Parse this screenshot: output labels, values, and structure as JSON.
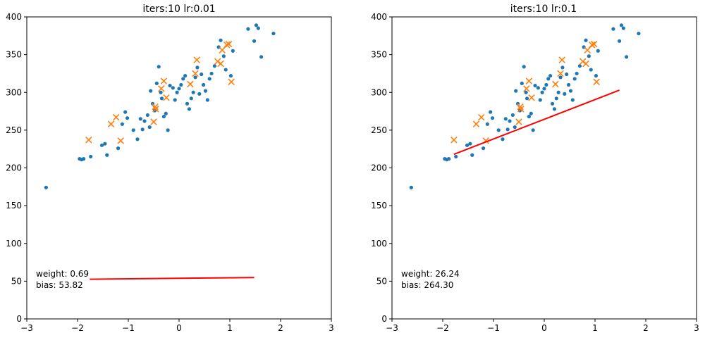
{
  "colors": {
    "train_points": "#1f77b4",
    "test_points": "#ff7f0e",
    "fit_line": "#ff0000",
    "axes": "#000000",
    "background": "#ffffff"
  },
  "chart_data": [
    {
      "type": "scatter",
      "title": "iters:10 lr:0.01",
      "xlabel": "",
      "ylabel": "",
      "xlim": [
        -3,
        3
      ],
      "ylim": [
        0,
        400
      ],
      "xticks": [
        "−3",
        "−2",
        "−1",
        "0",
        "1",
        "2",
        "3"
      ],
      "yticks": [
        "0",
        "50",
        "100",
        "150",
        "200",
        "250",
        "300",
        "350",
        "400"
      ],
      "grid": false,
      "annotation": {
        "weight": "weight: 0.69",
        "bias": "bias: 53.82"
      },
      "series": [
        {
          "kind": "train",
          "marker": "dot",
          "points": [
            [
              -2.62,
              174
            ],
            [
              -1.96,
              212
            ],
            [
              -1.92,
              211
            ],
            [
              -1.88,
              212
            ],
            [
              -1.74,
              215
            ],
            [
              -1.52,
              230
            ],
            [
              -1.46,
              232
            ],
            [
              -1.42,
              217
            ],
            [
              -1.2,
              226
            ],
            [
              -1.12,
              258
            ],
            [
              -1.06,
              274
            ],
            [
              -1.02,
              266
            ],
            [
              -0.9,
              250
            ],
            [
              -0.82,
              238
            ],
            [
              -0.76,
              265
            ],
            [
              -0.72,
              251
            ],
            [
              -0.68,
              262
            ],
            [
              -0.62,
              270
            ],
            [
              -0.58,
              254
            ],
            [
              -0.56,
              302
            ],
            [
              -0.52,
              285
            ],
            [
              -0.48,
              276
            ],
            [
              -0.44,
              312
            ],
            [
              -0.4,
              334
            ],
            [
              -0.36,
              300
            ],
            [
              -0.34,
              292
            ],
            [
              -0.3,
              268
            ],
            [
              -0.26,
              272
            ],
            [
              -0.22,
              250
            ],
            [
              -0.18,
              309
            ],
            [
              -0.12,
              306
            ],
            [
              -0.08,
              290
            ],
            [
              -0.04,
              300
            ],
            [
              0.0,
              305
            ],
            [
              0.04,
              310
            ],
            [
              0.08,
              318
            ],
            [
              0.12,
              322
            ],
            [
              0.16,
              285
            ],
            [
              0.2,
              278
            ],
            [
              0.24,
              292
            ],
            [
              0.28,
              300
            ],
            [
              0.32,
              320
            ],
            [
              0.36,
              333
            ],
            [
              0.4,
              298
            ],
            [
              0.44,
              324
            ],
            [
              0.48,
              310
            ],
            [
              0.52,
              302
            ],
            [
              0.56,
              290
            ],
            [
              0.6,
              318
            ],
            [
              0.64,
              325
            ],
            [
              0.7,
              335
            ],
            [
              0.78,
              360
            ],
            [
              0.82,
              369
            ],
            [
              0.88,
              348
            ],
            [
              0.92,
              330
            ],
            [
              1.02,
              322
            ],
            [
              1.06,
              355
            ],
            [
              1.36,
              384
            ],
            [
              1.48,
              368
            ],
            [
              1.52,
              389
            ],
            [
              1.56,
              385
            ],
            [
              1.62,
              347
            ],
            [
              1.86,
              378
            ]
          ]
        },
        {
          "kind": "test",
          "marker": "x",
          "points": [
            [
              -1.78,
              237
            ],
            [
              -1.34,
              258
            ],
            [
              -1.24,
              267
            ],
            [
              -1.15,
              236
            ],
            [
              -0.5,
              261
            ],
            [
              -0.47,
              281
            ],
            [
              -0.46,
              278
            ],
            [
              -0.35,
              305
            ],
            [
              -0.3,
              315
            ],
            [
              -0.25,
              293
            ],
            [
              0.22,
              311
            ],
            [
              0.32,
              325
            ],
            [
              0.35,
              343
            ],
            [
              0.76,
              341
            ],
            [
              0.82,
              338
            ],
            [
              0.85,
              356
            ],
            [
              0.94,
              363
            ],
            [
              0.98,
              364
            ],
            [
              1.03,
              314
            ]
          ]
        },
        {
          "kind": "fit",
          "marker": "line",
          "x": [
            -1.76,
            1.48
          ],
          "y": [
            52.6,
            54.8
          ]
        }
      ]
    },
    {
      "type": "scatter",
      "title": "iters:10 lr:0.1",
      "xlabel": "",
      "ylabel": "",
      "xlim": [
        -3,
        3
      ],
      "ylim": [
        0,
        400
      ],
      "xticks": [
        "−3",
        "−2",
        "−1",
        "0",
        "1",
        "2",
        "3"
      ],
      "yticks": [
        "0",
        "50",
        "100",
        "150",
        "200",
        "250",
        "300",
        "350",
        "400"
      ],
      "grid": false,
      "annotation": {
        "weight": "weight: 26.24",
        "bias": "bias: 264.30"
      },
      "series": [
        {
          "kind": "train",
          "marker": "dot",
          "points": [
            [
              -2.62,
              174
            ],
            [
              -1.96,
              212
            ],
            [
              -1.92,
              211
            ],
            [
              -1.88,
              212
            ],
            [
              -1.74,
              215
            ],
            [
              -1.52,
              230
            ],
            [
              -1.46,
              232
            ],
            [
              -1.42,
              217
            ],
            [
              -1.2,
              226
            ],
            [
              -1.12,
              258
            ],
            [
              -1.06,
              274
            ],
            [
              -1.02,
              266
            ],
            [
              -0.9,
              250
            ],
            [
              -0.82,
              238
            ],
            [
              -0.76,
              265
            ],
            [
              -0.72,
              251
            ],
            [
              -0.68,
              262
            ],
            [
              -0.62,
              270
            ],
            [
              -0.58,
              254
            ],
            [
              -0.56,
              302
            ],
            [
              -0.52,
              285
            ],
            [
              -0.48,
              276
            ],
            [
              -0.44,
              312
            ],
            [
              -0.4,
              334
            ],
            [
              -0.36,
              300
            ],
            [
              -0.34,
              292
            ],
            [
              -0.3,
              268
            ],
            [
              -0.26,
              272
            ],
            [
              -0.22,
              250
            ],
            [
              -0.18,
              309
            ],
            [
              -0.12,
              306
            ],
            [
              -0.08,
              290
            ],
            [
              -0.04,
              300
            ],
            [
              0.0,
              305
            ],
            [
              0.04,
              310
            ],
            [
              0.08,
              318
            ],
            [
              0.12,
              322
            ],
            [
              0.16,
              285
            ],
            [
              0.2,
              278
            ],
            [
              0.24,
              292
            ],
            [
              0.28,
              300
            ],
            [
              0.32,
              320
            ],
            [
              0.36,
              333
            ],
            [
              0.4,
              298
            ],
            [
              0.44,
              324
            ],
            [
              0.48,
              310
            ],
            [
              0.52,
              302
            ],
            [
              0.56,
              290
            ],
            [
              0.6,
              318
            ],
            [
              0.64,
              325
            ],
            [
              0.7,
              335
            ],
            [
              0.78,
              360
            ],
            [
              0.82,
              369
            ],
            [
              0.88,
              348
            ],
            [
              0.92,
              330
            ],
            [
              1.02,
              322
            ],
            [
              1.06,
              355
            ],
            [
              1.36,
              384
            ],
            [
              1.48,
              368
            ],
            [
              1.52,
              389
            ],
            [
              1.56,
              385
            ],
            [
              1.62,
              347
            ],
            [
              1.86,
              378
            ]
          ]
        },
        {
          "kind": "test",
          "marker": "x",
          "points": [
            [
              -1.78,
              237
            ],
            [
              -1.34,
              258
            ],
            [
              -1.24,
              267
            ],
            [
              -1.15,
              236
            ],
            [
              -0.5,
              261
            ],
            [
              -0.47,
              281
            ],
            [
              -0.46,
              278
            ],
            [
              -0.35,
              305
            ],
            [
              -0.3,
              315
            ],
            [
              -0.25,
              293
            ],
            [
              0.22,
              311
            ],
            [
              0.32,
              325
            ],
            [
              0.35,
              343
            ],
            [
              0.76,
              341
            ],
            [
              0.82,
              338
            ],
            [
              0.85,
              356
            ],
            [
              0.94,
              363
            ],
            [
              0.98,
              364
            ],
            [
              1.03,
              314
            ]
          ]
        },
        {
          "kind": "fit",
          "marker": "line",
          "x": [
            -1.78,
            1.48
          ],
          "y": [
            218,
            303
          ]
        }
      ]
    }
  ]
}
